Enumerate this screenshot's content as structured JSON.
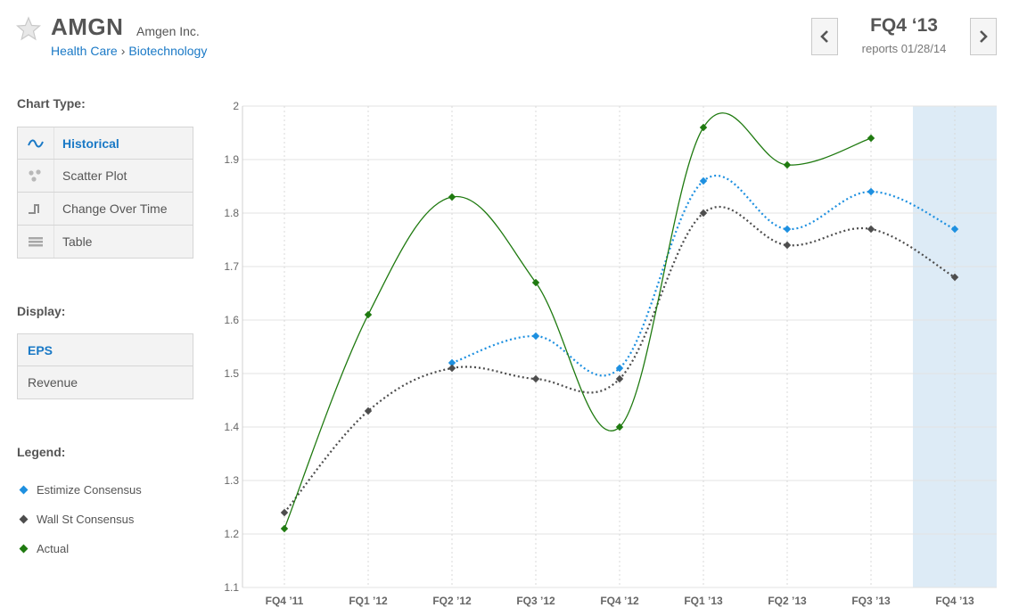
{
  "header": {
    "ticker": "AMGN",
    "company": "Amgen Inc.",
    "sector": "Health Care",
    "separator": "›",
    "industry": "Biotechnology",
    "quarter": "FQ4 ‘13",
    "reports": "reports 01/28/14",
    "star_icon": "star-icon",
    "prev_icon": "chevron-left-icon",
    "next_icon": "chevron-right-icon"
  },
  "sidebar": {
    "chart_type_label": "Chart Type:",
    "chart_types": [
      {
        "label": "Historical",
        "icon": "wave-icon",
        "active": true
      },
      {
        "label": "Scatter Plot",
        "icon": "scatter-icon",
        "active": false
      },
      {
        "label": "Change Over Time",
        "icon": "step-icon",
        "active": false
      },
      {
        "label": "Table",
        "icon": "table-icon",
        "active": false
      }
    ],
    "display_label": "Display:",
    "display_options": [
      {
        "label": "EPS",
        "active": true
      },
      {
        "label": "Revenue",
        "active": false
      }
    ],
    "legend_label": "Legend:",
    "legend": [
      {
        "label": "Estimize Consensus",
        "color": "#1e90e0"
      },
      {
        "label": "Wall St Consensus",
        "color": "#4d4d4d"
      },
      {
        "label": "Actual",
        "color": "#1f7a10"
      }
    ]
  },
  "colors": {
    "accent": "#1a79c6",
    "estimize": "#1e90e0",
    "wallst": "#4d4d4d",
    "actual": "#1f7a10",
    "highlight": "#ddebf6"
  },
  "chart_data": {
    "type": "line",
    "categories": [
      "FQ4 '11",
      "FQ1 '12",
      "FQ2 '12",
      "FQ3 '12",
      "FQ4 '12",
      "FQ1 '13",
      "FQ2 '13",
      "FQ3 '13",
      "FQ4 '13"
    ],
    "series": [
      {
        "name": "Estimize Consensus",
        "values": [
          null,
          null,
          1.52,
          1.57,
          1.51,
          1.86,
          1.77,
          1.84,
          1.77
        ]
      },
      {
        "name": "Wall St Consensus",
        "values": [
          1.24,
          1.43,
          1.51,
          1.49,
          1.49,
          1.8,
          1.74,
          1.77,
          1.68
        ]
      },
      {
        "name": "Actual",
        "values": [
          1.21,
          1.61,
          1.83,
          1.67,
          1.4,
          1.96,
          1.89,
          1.94,
          null
        ]
      }
    ],
    "yticks": [
      "2",
      "1.9",
      "1.8",
      "1.7",
      "1.6",
      "1.5",
      "1.4",
      "1.3",
      "1.2",
      "1.1"
    ],
    "ylim": [
      1.1,
      2.0
    ],
    "highlighted_category": "FQ4 '13",
    "grid": true
  }
}
